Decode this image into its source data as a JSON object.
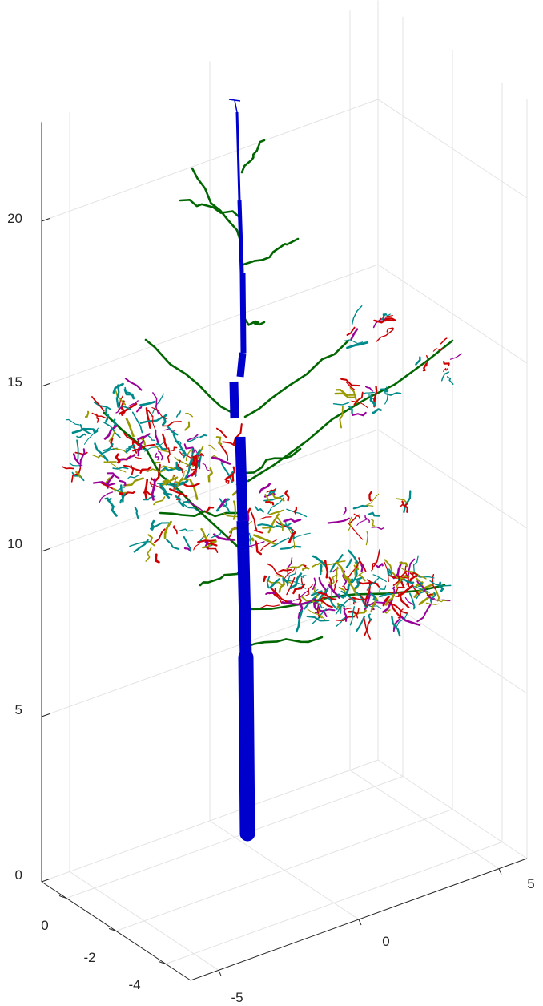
{
  "chart_data": {
    "type": "3d-line",
    "title": "",
    "xlabel": "",
    "ylabel": "",
    "zlabel": "",
    "grid": true,
    "x_axis": {
      "range": [
        -6,
        6
      ],
      "ticks": [
        -5,
        0,
        5
      ],
      "tick_labels": [
        "-5",
        "0",
        "5"
      ]
    },
    "y_axis": {
      "range": [
        -5,
        1
      ],
      "ticks": [
        0,
        -2,
        -4
      ],
      "tick_labels": [
        "0",
        "-2",
        "-4"
      ]
    },
    "z_axis": {
      "range": [
        0,
        23
      ],
      "ticks": [
        0,
        5,
        10,
        15,
        20
      ],
      "tick_labels": [
        "0",
        "5",
        "10",
        "15",
        "20"
      ]
    },
    "series": [
      {
        "level": 1,
        "color": "#0000cc",
        "segments": 1
      },
      {
        "level": 2,
        "color": "#006600",
        "segments": 14
      },
      {
        "level": 3,
        "color": "#cc0000",
        "segments": 60
      },
      {
        "level": 4,
        "color": "#008b8b",
        "segments": 60
      },
      {
        "level": 5,
        "color": "#990099",
        "segments": 40
      },
      {
        "level": 6,
        "color": "#999900",
        "segments": 25
      }
    ]
  }
}
